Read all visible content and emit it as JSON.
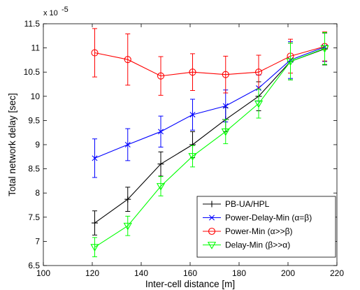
{
  "chart_data": {
    "type": "line",
    "title": "",
    "xlabel": "Inter-cell distance [m]",
    "ylabel": "Total network delay [sec]",
    "y_multiplier": "x 10",
    "y_multiplier_exponent": "-5",
    "xlim": [
      100,
      220
    ],
    "ylim": [
      6.5,
      11.5
    ],
    "x_ticks": [
      100,
      120,
      140,
      160,
      180,
      200,
      220
    ],
    "y_ticks": [
      6.5,
      7,
      7.5,
      8,
      8.5,
      9,
      9.5,
      10,
      10.5,
      11,
      11.5
    ],
    "x": [
      121,
      134.5,
      148,
      161,
      174.5,
      188,
      201,
      215
    ],
    "grid": false,
    "legend_position": "bottom-right",
    "series": [
      {
        "name": "PB-UA/HPL",
        "color": "#000000",
        "marker": "plus",
        "values": [
          7.38,
          7.87,
          8.6,
          9.0,
          9.52,
          10.0,
          10.72,
          10.98
        ],
        "errors": [
          0.25,
          0.25,
          0.25,
          0.27,
          0.25,
          0.3,
          0.38,
          0.33
        ]
      },
      {
        "name": "Power-Delay-Min (α=β)",
        "color": "#0000ff",
        "marker": "x",
        "values": [
          8.72,
          9.0,
          9.27,
          9.62,
          9.8,
          10.17,
          10.75,
          11.02
        ],
        "errors": [
          0.4,
          0.33,
          0.32,
          0.32,
          0.33,
          0.27,
          0.38,
          0.3
        ]
      },
      {
        "name": "Power-Min (α>>β)",
        "color": "#ff0000",
        "marker": "circle",
        "values": [
          10.9,
          10.76,
          10.42,
          10.5,
          10.45,
          10.5,
          10.83,
          11.03
        ],
        "errors": [
          0.5,
          0.53,
          0.4,
          0.38,
          0.38,
          0.35,
          0.35,
          0.3
        ]
      },
      {
        "name": "Delay-Min (β>>α)",
        "color": "#00ff00",
        "marker": "triangle-down",
        "values": [
          6.88,
          7.32,
          8.14,
          8.76,
          9.27,
          9.85,
          10.72,
          10.99
        ],
        "errors": [
          0.2,
          0.2,
          0.2,
          0.22,
          0.25,
          0.3,
          0.38,
          0.33
        ]
      }
    ]
  }
}
